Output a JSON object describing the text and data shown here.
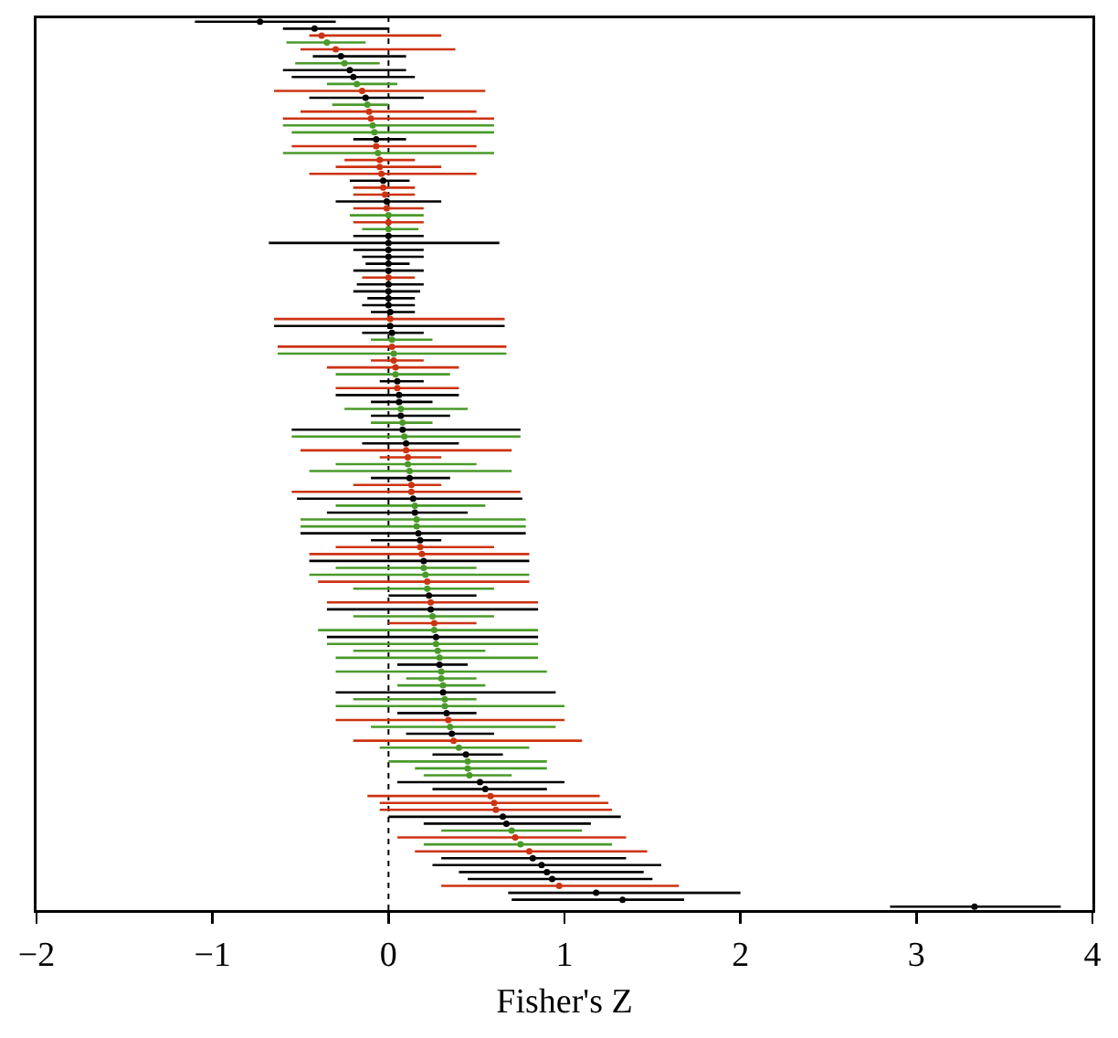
{
  "chart_data": {
    "type": "scatter",
    "orientation": "horizontal",
    "xlabel": "Fisher's Z",
    "marker": "circle",
    "tick_labels": "x",
    "xlim": [
      -2,
      4
    ],
    "xticks": [
      {
        "value": -2,
        "label": "−2"
      },
      {
        "value": -1,
        "label": "−1"
      },
      0,
      1,
      2,
      3,
      4
    ],
    "ref_lines": [
      {
        "axis": "x",
        "value": 0,
        "color": "#000000",
        "line_style": "dotted"
      }
    ],
    "categories": [
      null,
      null,
      null,
      null,
      null,
      null,
      null,
      null,
      null,
      null,
      null,
      null,
      null,
      null,
      null,
      null,
      null,
      null,
      null,
      null,
      null,
      null,
      null,
      null,
      null,
      null,
      null,
      null,
      null,
      null,
      null,
      null,
      null,
      null,
      null,
      null,
      null,
      null,
      null,
      null,
      null,
      null,
      null,
      null,
      null,
      null,
      null,
      null,
      null,
      null,
      null,
      null,
      null,
      null,
      null,
      null,
      null,
      null,
      null,
      null,
      null,
      null,
      null,
      null,
      null,
      null,
      null,
      null,
      null,
      null,
      null,
      null,
      null,
      null,
      null,
      null,
      null,
      null,
      null,
      null,
      null,
      null,
      null,
      null,
      null,
      null,
      null,
      null,
      null,
      null,
      null,
      null,
      null,
      null,
      null,
      null,
      null,
      null,
      null,
      null,
      null,
      null,
      null,
      null,
      null,
      null,
      null,
      null,
      null,
      null,
      null,
      null,
      null,
      null,
      null,
      null,
      null,
      null,
      null,
      null,
      null,
      null,
      null,
      null,
      null,
      null,
      null,
      null,
      null
    ],
    "values": [
      -0.73,
      -0.42,
      -0.38,
      -0.35,
      -0.3,
      -0.27,
      -0.25,
      -0.22,
      -0.2,
      -0.18,
      -0.15,
      -0.13,
      -0.12,
      -0.11,
      -0.1,
      -0.09,
      -0.08,
      -0.07,
      -0.07,
      -0.06,
      -0.05,
      -0.05,
      -0.04,
      -0.03,
      -0.03,
      -0.02,
      -0.01,
      -0.01,
      0,
      0,
      0,
      0,
      0,
      0,
      0,
      0,
      0,
      0,
      0,
      0,
      0,
      0,
      0.01,
      0.01,
      0.01,
      0.02,
      0.02,
      0.02,
      0.03,
      0.03,
      0.04,
      0.04,
      0.05,
      0.05,
      0.06,
      0.06,
      0.07,
      0.07,
      0.08,
      0.08,
      0.09,
      0.1,
      0.1,
      0.11,
      0.11,
      0.12,
      0.12,
      0.13,
      0.13,
      0.14,
      0.15,
      0.15,
      0.16,
      0.16,
      0.17,
      0.18,
      0.18,
      0.19,
      0.2,
      0.2,
      0.21,
      0.22,
      0.22,
      0.23,
      0.24,
      0.24,
      0.25,
      0.26,
      0.26,
      0.27,
      0.27,
      0.28,
      0.29,
      0.29,
      0.3,
      0.3,
      0.31,
      0.31,
      0.32,
      0.32,
      0.33,
      0.34,
      0.35,
      0.36,
      0.37,
      0.4,
      0.44,
      0.45,
      0.45,
      0.46,
      0.52,
      0.55,
      0.58,
      0.6,
      0.61,
      0.65,
      0.67,
      0.7,
      0.72,
      0.75,
      0.8,
      0.82,
      0.87,
      0.9,
      0.93,
      0.97,
      1.18,
      1.33,
      3.33
    ],
    "errors": [
      [
        -1.1,
        -0.3
      ],
      [
        -0.6,
        0.0
      ],
      [
        -0.45,
        0.3
      ],
      [
        -0.58,
        -0.13
      ],
      [
        -0.5,
        0.38
      ],
      [
        -0.43,
        0.1
      ],
      [
        -0.53,
        -0.05
      ],
      [
        -0.6,
        0.1
      ],
      [
        -0.55,
        0.15
      ],
      [
        -0.35,
        0.05
      ],
      [
        -0.65,
        0.55
      ],
      [
        -0.45,
        0.2
      ],
      [
        -0.32,
        0.0
      ],
      [
        -0.5,
        0.5
      ],
      [
        -0.6,
        0.6
      ],
      [
        -0.6,
        0.6
      ],
      [
        -0.55,
        0.6
      ],
      [
        -0.2,
        0.1
      ],
      [
        -0.55,
        0.5
      ],
      [
        -0.6,
        0.6
      ],
      [
        -0.25,
        0.15
      ],
      [
        -0.3,
        0.3
      ],
      [
        -0.45,
        0.5
      ],
      [
        -0.22,
        0.12
      ],
      [
        -0.2,
        0.15
      ],
      [
        -0.2,
        0.15
      ],
      [
        -0.3,
        0.3
      ],
      [
        -0.2,
        0.2
      ],
      [
        -0.22,
        0.2
      ],
      [
        -0.2,
        0.2
      ],
      [
        -0.15,
        0.17
      ],
      [
        -0.2,
        0.2
      ],
      [
        -0.68,
        0.63
      ],
      [
        -0.2,
        0.2
      ],
      [
        -0.15,
        0.2
      ],
      [
        -0.13,
        0.12
      ],
      [
        -0.2,
        0.2
      ],
      [
        -0.15,
        0.15
      ],
      [
        -0.18,
        0.2
      ],
      [
        -0.2,
        0.18
      ],
      [
        -0.12,
        0.15
      ],
      [
        -0.15,
        0.15
      ],
      [
        -0.1,
        0.15
      ],
      [
        -0.65,
        0.66
      ],
      [
        -0.65,
        0.66
      ],
      [
        -0.15,
        0.2
      ],
      [
        -0.1,
        0.25
      ],
      [
        -0.63,
        0.67
      ],
      [
        -0.63,
        0.67
      ],
      [
        -0.1,
        0.2
      ],
      [
        -0.35,
        0.4
      ],
      [
        -0.3,
        0.35
      ],
      [
        -0.05,
        0.2
      ],
      [
        -0.3,
        0.4
      ],
      [
        -0.3,
        0.4
      ],
      [
        -0.1,
        0.25
      ],
      [
        -0.25,
        0.45
      ],
      [
        -0.1,
        0.35
      ],
      [
        -0.1,
        0.25
      ],
      [
        -0.55,
        0.75
      ],
      [
        -0.55,
        0.75
      ],
      [
        -0.15,
        0.4
      ],
      [
        -0.5,
        0.7
      ],
      [
        -0.05,
        0.3
      ],
      [
        -0.3,
        0.5
      ],
      [
        -0.45,
        0.7
      ],
      [
        -0.1,
        0.35
      ],
      [
        -0.2,
        0.3
      ],
      [
        -0.55,
        0.75
      ],
      [
        -0.52,
        0.76
      ],
      [
        -0.3,
        0.55
      ],
      [
        -0.35,
        0.45
      ],
      [
        -0.5,
        0.78
      ],
      [
        -0.5,
        0.78
      ],
      [
        -0.5,
        0.78
      ],
      [
        -0.1,
        0.3
      ],
      [
        -0.3,
        0.6
      ],
      [
        -0.45,
        0.8
      ],
      [
        -0.45,
        0.8
      ],
      [
        -0.3,
        0.5
      ],
      [
        -0.45,
        0.8
      ],
      [
        -0.4,
        0.8
      ],
      [
        -0.2,
        0.6
      ],
      [
        0.0,
        0.5
      ],
      [
        -0.35,
        0.85
      ],
      [
        -0.35,
        0.85
      ],
      [
        -0.2,
        0.6
      ],
      [
        0.0,
        0.5
      ],
      [
        -0.4,
        0.85
      ],
      [
        -0.35,
        0.85
      ],
      [
        -0.35,
        0.85
      ],
      [
        -0.2,
        0.55
      ],
      [
        -0.3,
        0.85
      ],
      [
        0.05,
        0.45
      ],
      [
        -0.3,
        0.9
      ],
      [
        0.1,
        0.5
      ],
      [
        0.05,
        0.55
      ],
      [
        -0.3,
        0.95
      ],
      [
        -0.2,
        0.5
      ],
      [
        -0.3,
        1.0
      ],
      [
        0.05,
        0.5
      ],
      [
        -0.3,
        1.0
      ],
      [
        -0.1,
        0.95
      ],
      [
        0.1,
        0.6
      ],
      [
        -0.2,
        1.1
      ],
      [
        -0.05,
        0.8
      ],
      [
        0.25,
        0.65
      ],
      [
        0.0,
        0.9
      ],
      [
        0.15,
        0.9
      ],
      [
        0.2,
        0.7
      ],
      [
        0.05,
        1.0
      ],
      [
        0.25,
        0.9
      ],
      [
        -0.12,
        1.2
      ],
      [
        -0.05,
        1.25
      ],
      [
        -0.05,
        1.27
      ],
      [
        0.0,
        1.32
      ],
      [
        0.2,
        1.15
      ],
      [
        0.3,
        1.1
      ],
      [
        0.05,
        1.35
      ],
      [
        0.2,
        1.27
      ],
      [
        0.15,
        1.47
      ],
      [
        0.3,
        1.35
      ],
      [
        0.25,
        1.55
      ],
      [
        0.4,
        1.45
      ],
      [
        0.45,
        1.5
      ],
      [
        0.3,
        1.65
      ],
      [
        0.68,
        2.0
      ],
      [
        0.7,
        1.68
      ],
      [
        2.85,
        3.82
      ]
    ],
    "colors": [
      "#000000",
      "#000000",
      "#cc3311",
      "#4a9a2a",
      "#cc3311",
      "#000000",
      "#4a9a2a",
      "#000000",
      "#000000",
      "#4a9a2a",
      "#cc3311",
      "#000000",
      "#4a9a2a",
      "#cc3311",
      "#cc3311",
      "#4a9a2a",
      "#4a9a2a",
      "#000000",
      "#cc3311",
      "#4a9a2a",
      "#cc3311",
      "#cc3311",
      "#cc3311",
      "#000000",
      "#cc3311",
      "#cc3311",
      "#000000",
      "#cc3311",
      "#4a9a2a",
      "#cc3311",
      "#4a9a2a",
      "#000000",
      "#000000",
      "#000000",
      "#000000",
      "#000000",
      "#000000",
      "#cc3311",
      "#000000",
      "#000000",
      "#000000",
      "#000000",
      "#000000",
      "#cc3311",
      "#000000",
      "#000000",
      "#4a9a2a",
      "#cc3311",
      "#4a9a2a",
      "#cc3311",
      "#cc3311",
      "#4a9a2a",
      "#000000",
      "#cc3311",
      "#000000",
      "#000000",
      "#4a9a2a",
      "#000000",
      "#4a9a2a",
      "#000000",
      "#4a9a2a",
      "#000000",
      "#cc3311",
      "#cc3311",
      "#4a9a2a",
      "#4a9a2a",
      "#000000",
      "#cc3311",
      "#cc3311",
      "#000000",
      "#4a9a2a",
      "#000000",
      "#4a9a2a",
      "#4a9a2a",
      "#000000",
      "#000000",
      "#cc3311",
      "#cc3311",
      "#000000",
      "#4a9a2a",
      "#4a9a2a",
      "#cc3311",
      "#4a9a2a",
      "#000000",
      "#cc3311",
      "#000000",
      "#4a9a2a",
      "#cc3311",
      "#4a9a2a",
      "#000000",
      "#4a9a2a",
      "#4a9a2a",
      "#4a9a2a",
      "#000000",
      "#4a9a2a",
      "#4a9a2a",
      "#4a9a2a",
      "#000000",
      "#4a9a2a",
      "#4a9a2a",
      "#000000",
      "#cc3311",
      "#4a9a2a",
      "#000000",
      "#cc3311",
      "#4a9a2a",
      "#000000",
      "#4a9a2a",
      "#4a9a2a",
      "#4a9a2a",
      "#000000",
      "#000000",
      "#cc3311",
      "#cc3311",
      "#cc3311",
      "#000000",
      "#000000",
      "#4a9a2a",
      "#cc3311",
      "#4a9a2a",
      "#cc3311",
      "#000000",
      "#000000",
      "#000000",
      "#000000",
      "#cc3311",
      "#000000",
      "#000000",
      "#000000"
    ]
  }
}
